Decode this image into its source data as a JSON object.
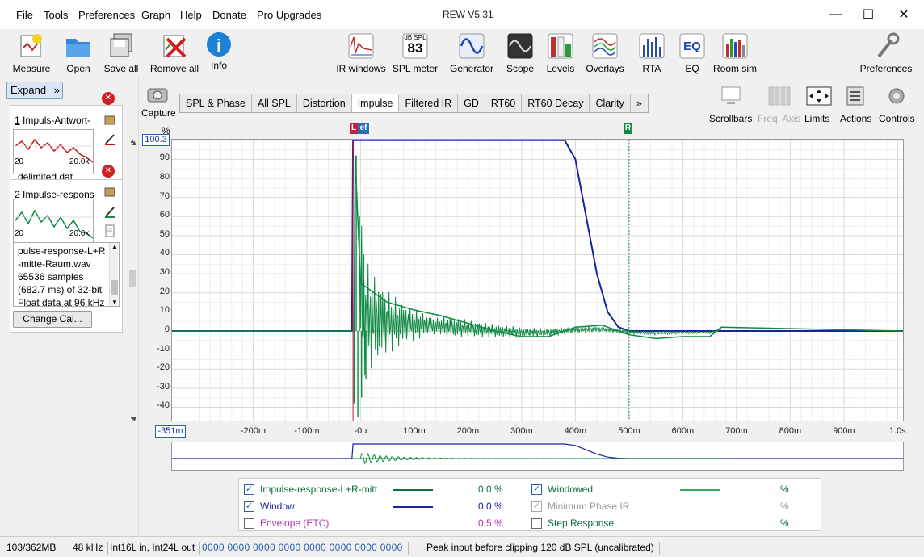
{
  "window": {
    "title": "REW V5.31"
  },
  "menu": [
    "File",
    "Tools",
    "Preferences",
    "Graph",
    "Help",
    "Donate",
    "Pro Upgrades"
  ],
  "toolbar": {
    "left": [
      {
        "label": "Measure",
        "icon": "measure-icon"
      },
      {
        "label": "Open",
        "icon": "folder-open-icon"
      },
      {
        "label": "Save all",
        "icon": "save-all-icon"
      },
      {
        "label": "Remove all",
        "icon": "remove-all-icon"
      },
      {
        "label": "Info",
        "icon": "info-icon"
      }
    ],
    "center": [
      {
        "label": "IR windows",
        "icon": "ir-windows-icon"
      },
      {
        "label": "SPL meter",
        "icon": "spl-meter-icon",
        "top": "dB SPL",
        "value": "83"
      },
      {
        "label": "Generator",
        "icon": "generator-icon"
      },
      {
        "label": "Scope",
        "icon": "scope-icon"
      },
      {
        "label": "Levels",
        "icon": "levels-icon"
      },
      {
        "label": "Overlays",
        "icon": "overlays-icon"
      },
      {
        "label": "RTA",
        "icon": "rta-icon"
      },
      {
        "label": "EQ",
        "icon": "eq-icon"
      },
      {
        "label": "Room sim",
        "icon": "room-sim-icon"
      }
    ],
    "preferences": "Preferences"
  },
  "left_panel": {
    "expand": "Expand",
    "measurements": [
      {
        "index": "1",
        "title": "Impuls-Antwort-",
        "axis_left": "20",
        "axis_right": "20.0k",
        "footer": "delimited dat"
      },
      {
        "index": "2",
        "title": "Impulse-respons",
        "axis_left": "20",
        "axis_right": "20.0k"
      }
    ],
    "info_lines": [
      "pulse-response-L+R",
      "-mitte-Raum.wav",
      "65536 samples",
      "(682.7 ms) of 32-bit",
      "Float data at 96 kHz"
    ],
    "change_cal": "Change Cal..."
  },
  "capture": "Capture",
  "tabs": [
    "SPL & Phase",
    "All SPL",
    "Distortion",
    "Impulse",
    "Filtered IR",
    "GD",
    "RT60",
    "RT60 Decay",
    "Clarity"
  ],
  "tabs_more": "»",
  "active_tab": "Impulse",
  "right_tools": [
    {
      "label": "Scrollbars",
      "enabled": true
    },
    {
      "label": "Freq. Axis",
      "enabled": false
    },
    {
      "label": "Limits",
      "enabled": true
    },
    {
      "label": "Actions",
      "enabled": true
    },
    {
      "label": "Controls",
      "enabled": true
    }
  ],
  "graph": {
    "y_unit": "%",
    "y_top_readout": "100.3",
    "x_left_readout": "-351m",
    "y_ticks": [
      "90",
      "80",
      "70",
      "60",
      "50",
      "40",
      "30",
      "20",
      "10",
      "0",
      "-10",
      "-20",
      "-30",
      "-40"
    ],
    "x_ticks": [
      "-200m",
      "-100m",
      "-0u",
      "100m",
      "200m",
      "300m",
      "400m",
      "500m",
      "600m",
      "700m",
      "800m",
      "900m",
      "1.0s"
    ],
    "marker_left": "L",
    "marker_ref": "ef",
    "marker_right": "R"
  },
  "chart_data": {
    "type": "line",
    "xlim": [
      -351,
      1010
    ],
    "ylim": [
      -47,
      100.3
    ],
    "x_unit": "ms",
    "y_unit": "%",
    "series": [
      {
        "name": "Window",
        "color": "#1a22a0",
        "x": [
          -351,
          -16,
          -14,
          380,
          400,
          420,
          440,
          460,
          480,
          500,
          1010
        ],
        "y": [
          0,
          0,
          100,
          100,
          90,
          60,
          30,
          10,
          2,
          0,
          0
        ]
      },
      {
        "name": "Impulse-response-L+R-mitt",
        "color": "#0f8a44",
        "x": [
          -351,
          -12,
          -10,
          0,
          50,
          100,
          150,
          200,
          250,
          300,
          350,
          400,
          450,
          500,
          550,
          600,
          650,
          672,
          1010
        ],
        "y": [
          0,
          0,
          92,
          25,
          15,
          11,
          8,
          4,
          0,
          -3,
          -3,
          2,
          3,
          -2,
          -4,
          -3,
          -3,
          2,
          0
        ]
      }
    ]
  },
  "legend": {
    "rows": [
      {
        "label": "Impulse-response-L+R-mitt",
        "value": "0.0 %",
        "checked": true,
        "color": "#0f6e3a",
        "line": "#0f6e3a"
      },
      {
        "label": "Window",
        "value": "0.0 %",
        "checked": true,
        "color": "#1a22a0",
        "line": "#1a22a0"
      },
      {
        "label": "Envelope (ETC)",
        "value": "0.5 %",
        "checked": false,
        "color": "#b03ab0",
        "line": ""
      }
    ],
    "rows_right": [
      {
        "label": "Windowed",
        "value": "%",
        "checked": true,
        "color": "#0f6e3a",
        "line": "#3aa857"
      },
      {
        "label": "Minimum Phase IR",
        "value": "%",
        "checked": true,
        "color": "#999999",
        "line": ""
      },
      {
        "label": "Step Response",
        "value": "%",
        "checked": false,
        "color": "#0f6e3a",
        "line": ""
      }
    ]
  },
  "status": {
    "memory": "103/362MB",
    "rate": "48 kHz",
    "format": "Int16L in, Int24L out",
    "bits": "0000 0000  0000 0000  0000 0000  0000 0000",
    "message": "Peak input before clipping 120 dB SPL (uncalibrated)"
  }
}
